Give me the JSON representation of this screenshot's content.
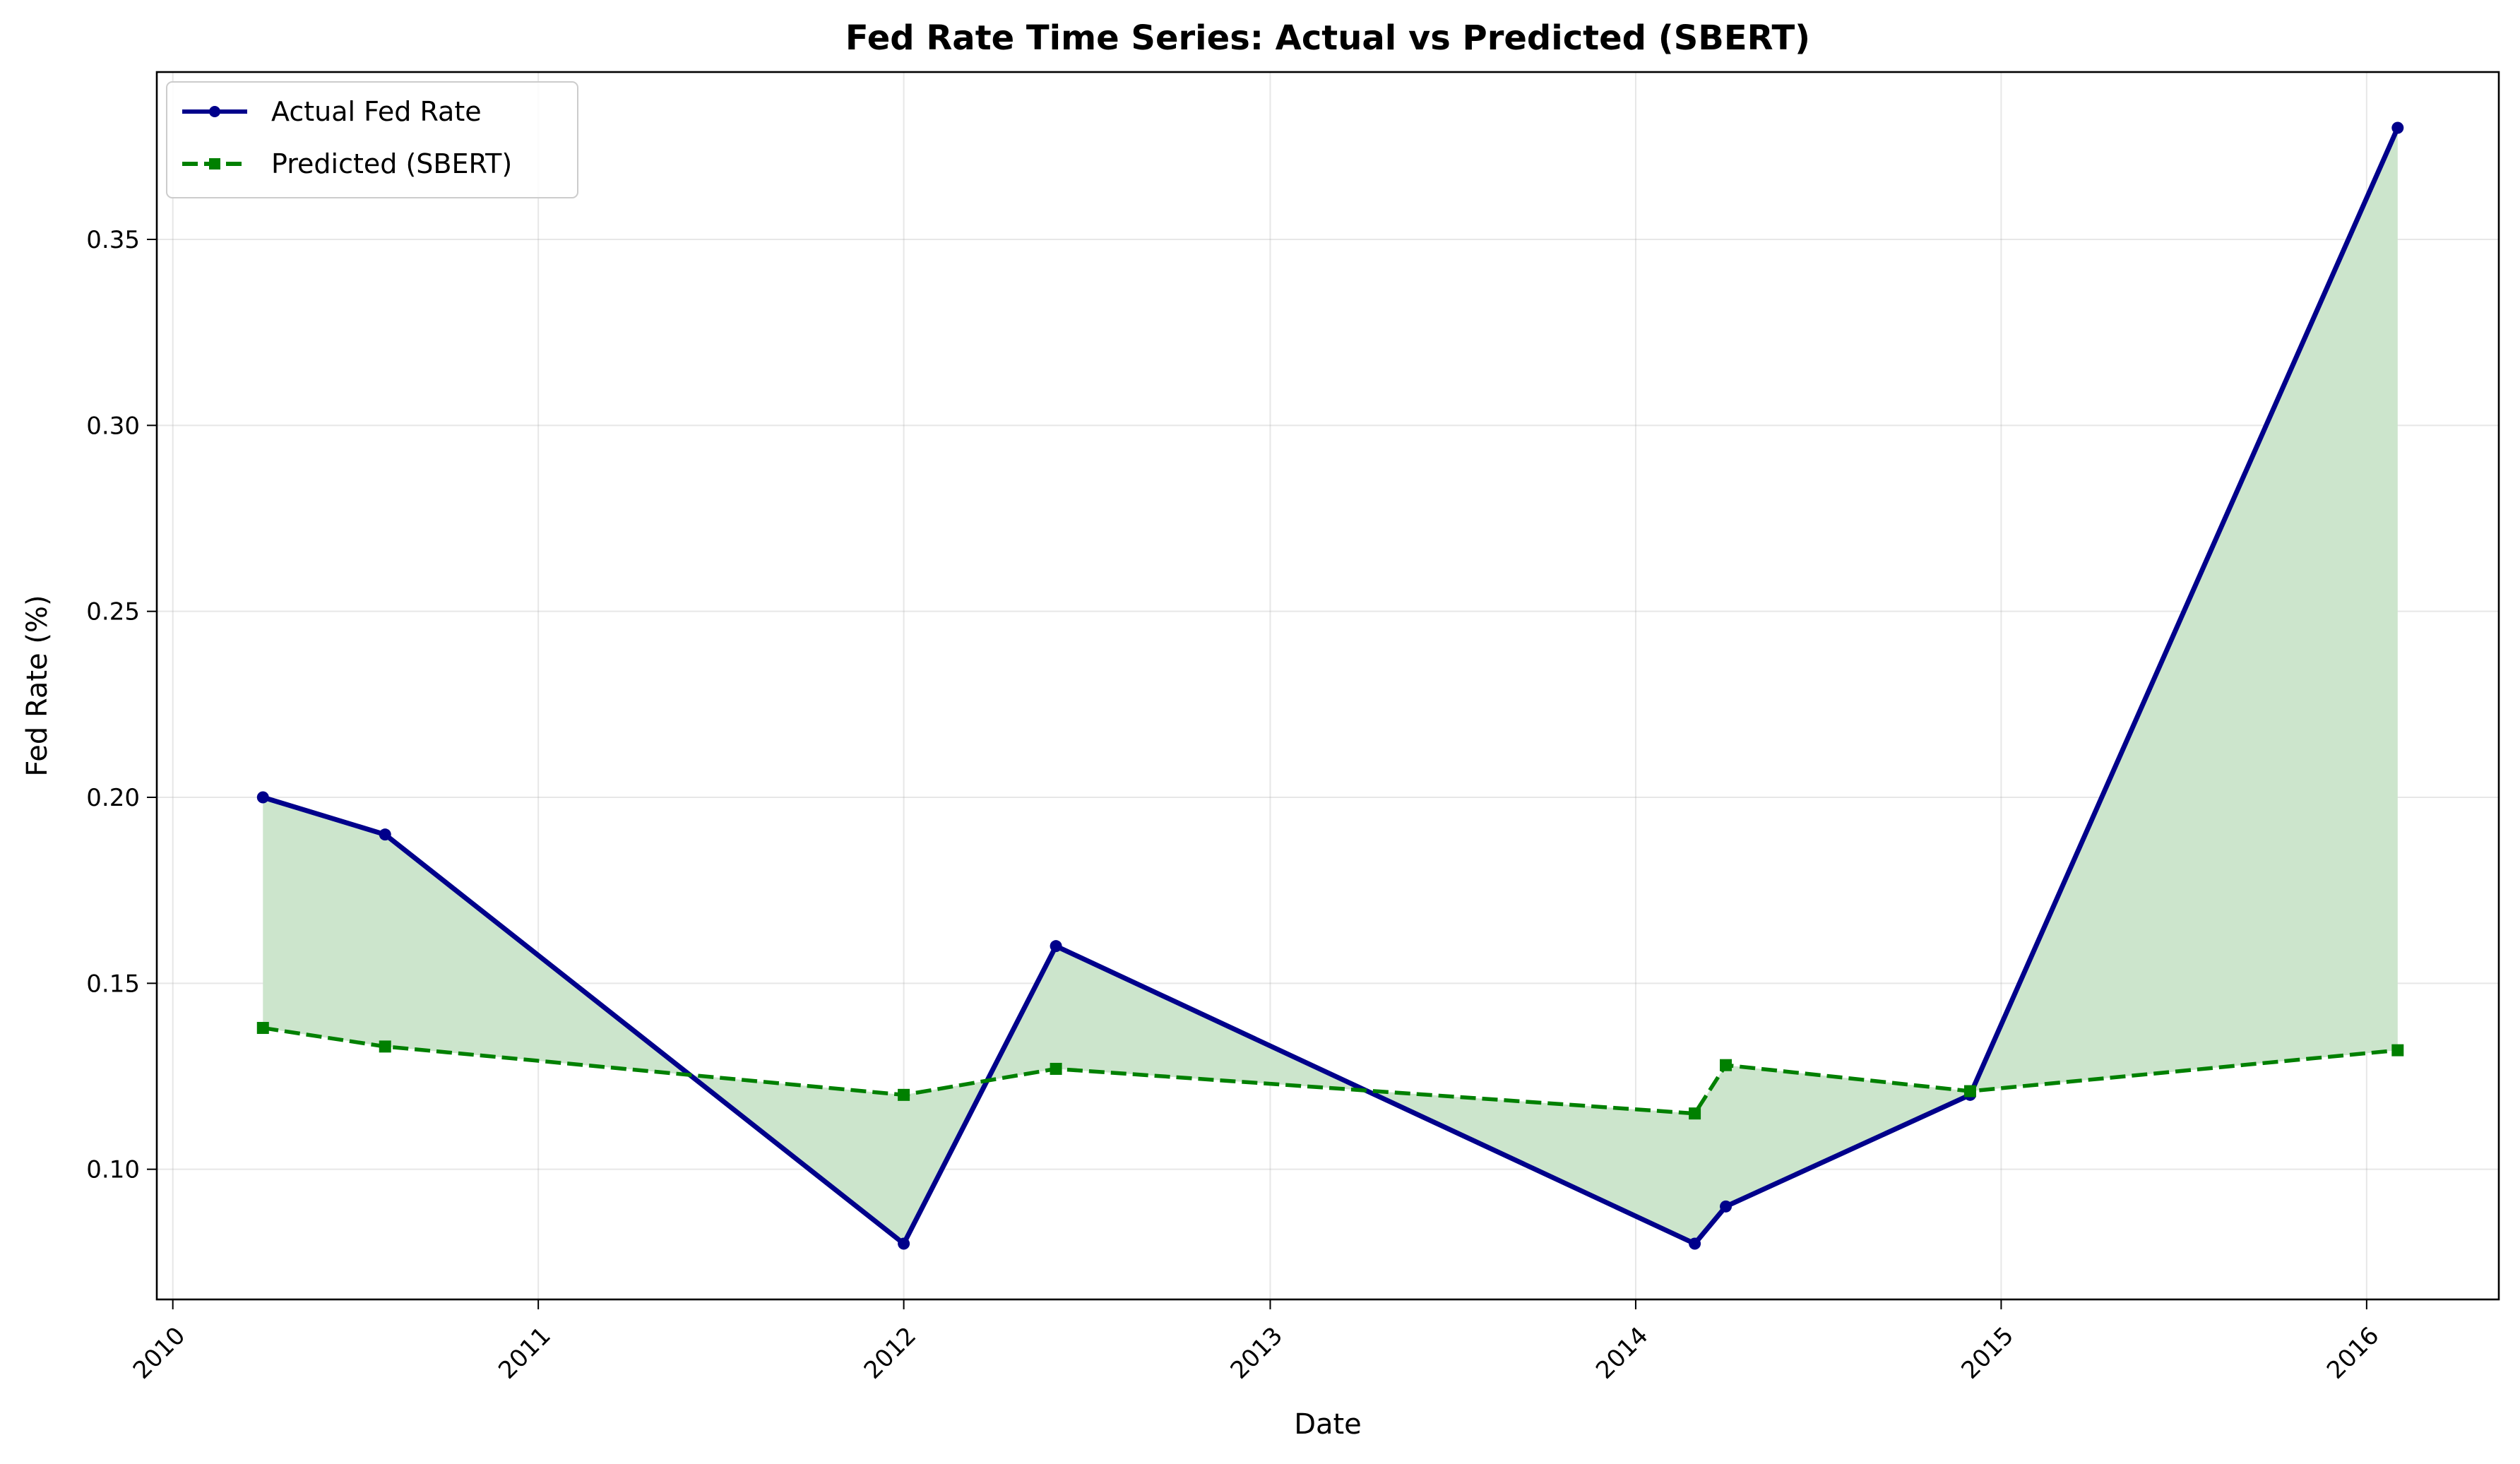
{
  "chart_data": {
    "type": "line",
    "title": "Fed Rate Time Series: Actual vs Predicted (SBERT)",
    "xlabel": "Date",
    "ylabel": "Fed Rate (%)",
    "x_axis": {
      "type": "date",
      "range": [
        "2009-12-16",
        "2016-05-12"
      ],
      "ticks": [
        "2010-01-01",
        "2011-01-01",
        "2012-01-01",
        "2013-01-01",
        "2014-01-01",
        "2015-01-01",
        "2016-01-01"
      ],
      "tick_labels": [
        "2010",
        "2011",
        "2012",
        "2013",
        "2014",
        "2015",
        "2016"
      ],
      "tick_label_rotation": "45 degrees"
    },
    "y_axis": {
      "range": [
        0.065,
        0.395
      ],
      "ticks": [
        0.1,
        0.15,
        0.2,
        0.25,
        0.3,
        0.35
      ],
      "tick_labels": [
        "0.10",
        "0.15",
        "0.20",
        "0.25",
        "0.30",
        "0.35"
      ]
    },
    "grid": true,
    "legend_position": "top-left",
    "fill_between_series": true,
    "fill_color": "#cce5cc",
    "series": [
      {
        "name": "Actual Fed Rate",
        "color": "#00008b",
        "line_style": "solid",
        "marker": "circle",
        "points": [
          {
            "x": "2010-04-01",
            "y": 0.2
          },
          {
            "x": "2010-08-01",
            "y": 0.19
          },
          {
            "x": "2012-01-01",
            "y": 0.08
          },
          {
            "x": "2012-06-01",
            "y": 0.16
          },
          {
            "x": "2014-03-01",
            "y": 0.08
          },
          {
            "x": "2014-04-01",
            "y": 0.09
          },
          {
            "x": "2014-12-01",
            "y": 0.12
          },
          {
            "x": "2016-02-01",
            "y": 0.38
          }
        ]
      },
      {
        "name": "Predicted (SBERT)",
        "color": "#008000",
        "line_style": "dashed",
        "marker": "square",
        "points": [
          {
            "x": "2010-04-01",
            "y": 0.138
          },
          {
            "x": "2010-08-01",
            "y": 0.133
          },
          {
            "x": "2012-01-01",
            "y": 0.12
          },
          {
            "x": "2012-06-01",
            "y": 0.127
          },
          {
            "x": "2014-03-01",
            "y": 0.115
          },
          {
            "x": "2014-04-01",
            "y": 0.128
          },
          {
            "x": "2014-12-01",
            "y": 0.121
          },
          {
            "x": "2016-02-01",
            "y": 0.132
          }
        ]
      }
    ]
  }
}
